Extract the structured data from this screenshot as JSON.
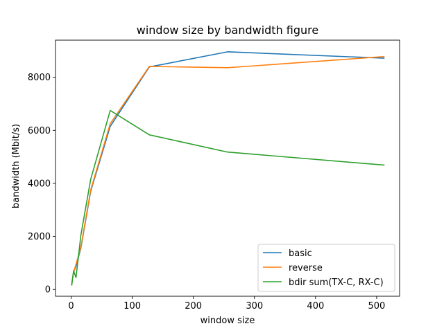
{
  "chart_data": {
    "type": "line",
    "title": "window size by bandwidth figure",
    "xlabel": "window size",
    "ylabel": "bandwidth (Mbit/s)",
    "xlim": [
      -25.55,
      537.55
    ],
    "ylim": [
      -255,
      9400
    ],
    "xticks": [
      0,
      100,
      200,
      300,
      400,
      500
    ],
    "yticks": [
      0,
      2000,
      4000,
      6000,
      8000
    ],
    "grid": false,
    "legend_position": "lower right",
    "series": [
      {
        "name": "basic",
        "color": "#1f77b4",
        "x": [
          1,
          2,
          4,
          8,
          16,
          32,
          64,
          128,
          256,
          512
        ],
        "y": [
          180,
          350,
          640,
          880,
          1560,
          3700,
          6150,
          8390,
          8960,
          8720
        ]
      },
      {
        "name": "reverse",
        "color": "#ff7f0e",
        "x": [
          1,
          2,
          4,
          8,
          16,
          32,
          64,
          128,
          256,
          512
        ],
        "y": [
          190,
          360,
          650,
          950,
          1600,
          3750,
          6250,
          8410,
          8360,
          8780
        ]
      },
      {
        "name": "bdir sum(TX-C, RX-C)",
        "color": "#2ca02c",
        "x": [
          1,
          2,
          4,
          8,
          16,
          32,
          64,
          128,
          256,
          512
        ],
        "y": [
          170,
          340,
          700,
          450,
          2050,
          4150,
          6750,
          5830,
          5180,
          4690
        ]
      }
    ]
  }
}
